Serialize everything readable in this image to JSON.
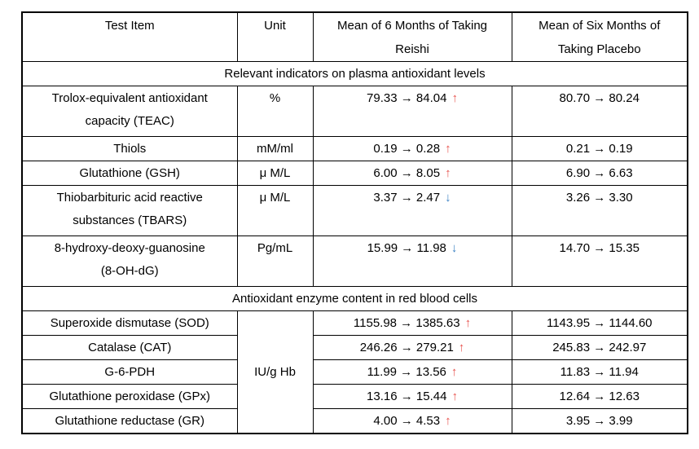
{
  "colors": {
    "background": "#ffffff",
    "text": "#000000",
    "border": "#000000",
    "trend_up": "#e8534e",
    "trend_down": "#3c82c4"
  },
  "table": {
    "columns": [
      {
        "lines": [
          "Test Item"
        ]
      },
      {
        "lines": [
          "Unit"
        ]
      },
      {
        "lines": [
          "Mean of 6 Months of Taking",
          "Reishi"
        ]
      },
      {
        "lines": [
          "Mean of Six Months of",
          "Taking Placebo"
        ]
      }
    ],
    "sections": [
      {
        "title": "Relevant indicators on plasma antioxidant levels",
        "rows": [
          {
            "item_lines": [
              "Trolox-equivalent antioxidant",
              "capacity (TEAC)"
            ],
            "unit": "%",
            "reishi_value": "79.33 → 84.04",
            "trend": "up",
            "trend_arrow": "↑",
            "placebo_value": "80.70 → 80.24"
          },
          {
            "item_lines": [
              "Thiols"
            ],
            "unit": "mM/ml",
            "reishi_value": "0.19 → 0.28",
            "trend": "up",
            "trend_arrow": "↑",
            "placebo_value": "0.21 → 0.19"
          },
          {
            "item_lines": [
              "Glutathione (GSH)"
            ],
            "unit": "μ M/L",
            "reishi_value": "6.00 → 8.05",
            "trend": "up",
            "trend_arrow": "↑",
            "placebo_value": "6.90 → 6.63"
          },
          {
            "item_lines": [
              "Thiobarbituric acid reactive",
              "substances (TBARS)"
            ],
            "unit": "μ M/L",
            "reishi_value": "3.37 → 2.47",
            "trend": "down",
            "trend_arrow": "↓",
            "placebo_value": "3.26 → 3.30"
          },
          {
            "item_lines": [
              "8-hydroxy-deoxy-guanosine",
              "(8-OH-dG)"
            ],
            "unit": "Pg/mL",
            "reishi_value": "15.99 → 11.98",
            "trend": "down",
            "trend_arrow": "↓",
            "placebo_value": "14.70 → 15.35"
          }
        ]
      },
      {
        "title": "Antioxidant enzyme content in red blood cells",
        "shared_unit": "IU/g Hb",
        "rows": [
          {
            "item_lines": [
              "Superoxide dismutase (SOD)"
            ],
            "reishi_value": "1155.98 → 1385.63",
            "trend": "up",
            "trend_arrow": "↑",
            "placebo_value": "1143.95 → 1144.60"
          },
          {
            "item_lines": [
              "Catalase (CAT)"
            ],
            "reishi_value": "246.26 → 279.21",
            "trend": "up",
            "trend_arrow": "↑",
            "placebo_value": "245.83 → 242.97"
          },
          {
            "item_lines": [
              "G-6-PDH"
            ],
            "reishi_value": "11.99 → 13.56",
            "trend": "up",
            "trend_arrow": "↑",
            "placebo_value": "11.83 → 11.94"
          },
          {
            "item_lines": [
              "Glutathione peroxidase (GPx)"
            ],
            "reishi_value": "13.16 → 15.44",
            "trend": "up",
            "trend_arrow": "↑",
            "placebo_value": "12.64 → 12.63"
          },
          {
            "item_lines": [
              "Glutathione reductase (GR)"
            ],
            "reishi_value": "4.00 → 4.53",
            "trend": "up",
            "trend_arrow": "↑",
            "placebo_value": "3.95 → 3.99"
          }
        ]
      }
    ]
  }
}
